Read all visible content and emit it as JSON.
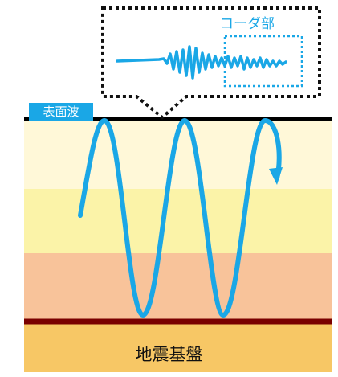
{
  "labels": {
    "surface_wave": "表面波",
    "coda": "コーダ部",
    "bedrock": "地震基盤"
  },
  "colors": {
    "wave": "#1aa7e6",
    "layer_top": "#fff8d8",
    "layer_mid": "#fbf3a8",
    "layer_low": "#f8c39a",
    "bedrock": "#f7c765",
    "bedrock_line": "#7a0000",
    "surface_line": "#000000"
  }
}
